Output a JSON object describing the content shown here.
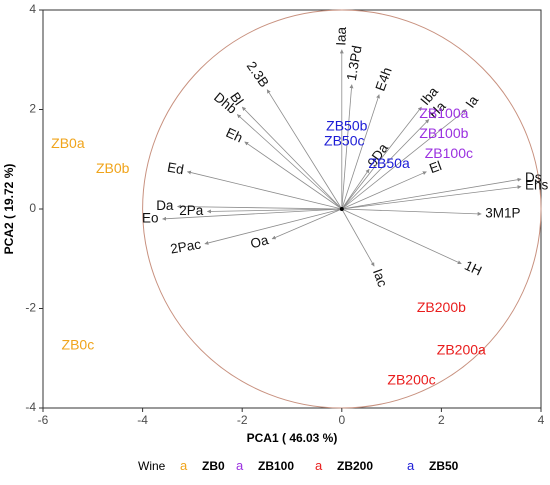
{
  "chart_data": {
    "type": "scatter",
    "subtype": "pca-biplot",
    "xlabel": "PCA1 ( 46.03 %)",
    "ylabel": "PCA2 ( 19.72 %)",
    "xlim": [
      -6,
      4
    ],
    "ylim": [
      -4,
      4
    ],
    "xticks": [
      -6,
      -4,
      -2,
      0,
      2,
      4
    ],
    "yticks": [
      -4,
      -2,
      0,
      2,
      4
    ],
    "grid": false,
    "circle": {
      "center": [
        0,
        0
      ],
      "radius": 4,
      "color": "#c8917f"
    },
    "arrow_color": "#8c8c8c",
    "variables": [
      {
        "name": "Iaa",
        "x": 0.0,
        "y": 3.2,
        "angle": -88
      },
      {
        "name": "1.3Pd",
        "x": 0.2,
        "y": 2.5,
        "angle": -80
      },
      {
        "name": "E4h",
        "x": 0.75,
        "y": 2.3,
        "angle": -70
      },
      {
        "name": "2.3B",
        "x": -1.5,
        "y": 2.4,
        "angle": 55
      },
      {
        "name": "Bl",
        "x": -2.0,
        "y": 2.05,
        "angle": 55
      },
      {
        "name": "Dhb",
        "x": -2.1,
        "y": 1.9,
        "angle": 40
      },
      {
        "name": "Eh",
        "x": -1.95,
        "y": 1.35,
        "angle": 25
      },
      {
        "name": "Ed",
        "x": -3.1,
        "y": 0.75,
        "angle": 10
      },
      {
        "name": "Da",
        "x": -3.3,
        "y": 0.05,
        "angle": 0
      },
      {
        "name": "2Pa",
        "x": -2.7,
        "y": -0.05,
        "angle": 0
      },
      {
        "name": "Eo",
        "x": -3.6,
        "y": -0.2,
        "angle": 0
      },
      {
        "name": "2Pac",
        "x": -2.75,
        "y": -0.7,
        "angle": -10
      },
      {
        "name": "Oa",
        "x": -1.4,
        "y": -0.6,
        "angle": -15
      },
      {
        "name": "9Da",
        "x": 0.55,
        "y": 0.8,
        "angle": -55
      },
      {
        "name": "Iba",
        "x": 1.6,
        "y": 2.05,
        "angle": -50
      },
      {
        "name": "Ha",
        "x": 1.75,
        "y": 1.8,
        "angle": -45
      },
      {
        "name": "Ia",
        "x": 2.5,
        "y": 2.0,
        "angle": -55
      },
      {
        "name": "El",
        "x": 1.7,
        "y": 0.75,
        "angle": -20
      },
      {
        "name": "Ds",
        "x": 3.6,
        "y": 0.6,
        "angle": 0
      },
      {
        "name": "Ehs",
        "x": 3.6,
        "y": 0.45,
        "angle": 0
      },
      {
        "name": "3M1P",
        "x": 2.8,
        "y": -0.1,
        "angle": 0
      },
      {
        "name": "Iac",
        "x": 0.65,
        "y": -1.15,
        "angle": 70
      },
      {
        "name": "1H",
        "x": 2.4,
        "y": -1.1,
        "angle": 25
      }
    ],
    "legend": {
      "title": "Wine",
      "placement": "bottom",
      "symbol": "a",
      "entries": [
        {
          "name": "ZB0",
          "color": "#f0a41b"
        },
        {
          "name": "ZB100",
          "color": "#9b31e0"
        },
        {
          "name": "ZB200",
          "color": "#e91d1d"
        },
        {
          "name": "ZB50",
          "color": "#1c1cd6"
        }
      ]
    },
    "series": [
      {
        "name": "ZB0",
        "color": "#f0a41b",
        "points": [
          {
            "label": "ZB0a",
            "x": -5.5,
            "y": 1.3
          },
          {
            "label": "ZB0b",
            "x": -4.6,
            "y": 0.8
          },
          {
            "label": "ZB0c",
            "x": -5.3,
            "y": -2.75
          }
        ]
      },
      {
        "name": "ZB100",
        "color": "#9b31e0",
        "points": [
          {
            "label": "ZB100a",
            "x": 2.05,
            "y": 1.9
          },
          {
            "label": "ZB100b",
            "x": 2.05,
            "y": 1.5
          },
          {
            "label": "ZB100c",
            "x": 2.15,
            "y": 1.1
          }
        ]
      },
      {
        "name": "ZB200",
        "color": "#e91d1d",
        "points": [
          {
            "label": "ZB200b",
            "x": 2.0,
            "y": -2.0
          },
          {
            "label": "ZB200a",
            "x": 2.4,
            "y": -2.85
          },
          {
            "label": "ZB200c",
            "x": 1.4,
            "y": -3.45
          }
        ]
      },
      {
        "name": "ZB50",
        "color": "#1c1cd6",
        "points": [
          {
            "label": "ZB50b",
            "x": 0.1,
            "y": 1.65
          },
          {
            "label": "ZB50c",
            "x": 0.05,
            "y": 1.35
          },
          {
            "label": "ZB50a",
            "x": 0.95,
            "y": 0.9
          }
        ]
      }
    ]
  }
}
